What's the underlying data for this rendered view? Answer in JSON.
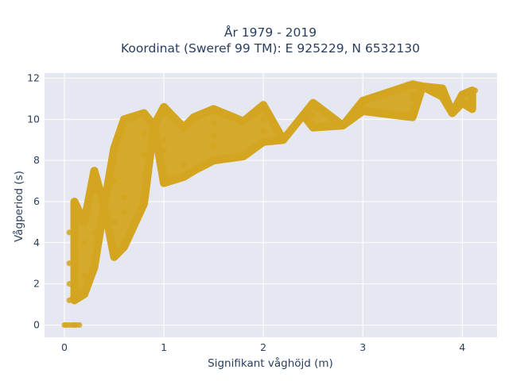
{
  "chart_data": {
    "type": "scatter",
    "title_line1": "År 1979 - 2019",
    "title_line2": "Koordinat (Sweref 99 TM): E 925229, N 6532130",
    "xlabel": "Signifikant våghöjd (m)",
    "ylabel": "Vågperiod (s)",
    "xlim": [
      -0.2,
      4.35
    ],
    "ylim": [
      -0.6,
      12.25
    ],
    "x_ticks": [
      0,
      1,
      2,
      3,
      4
    ],
    "y_ticks": [
      0,
      2,
      4,
      6,
      8,
      10,
      12
    ],
    "grid": true,
    "legend": "none",
    "colors": {
      "marker": "#d4a520",
      "plot_bg": "#e5e8f1",
      "grid": "#ffffff",
      "text": "#2a3f5f"
    },
    "series": [
      {
        "x": [
          0.0,
          0.02,
          0.05,
          0.08,
          0.1,
          0.12,
          0.15,
          0.05,
          0.08,
          0.1,
          0.12,
          0.15,
          0.05,
          0.1,
          0.2,
          0.3,
          0.5,
          0.6,
          0.05,
          0.1,
          0.2,
          0.3,
          0.5,
          0.6,
          0.8,
          0.05,
          0.2,
          0.4,
          0.6,
          0.8,
          1.0,
          1.2,
          1.3,
          0.1,
          0.3,
          0.5,
          0.8,
          1.0,
          1.2,
          1.5,
          1.8,
          0.3,
          0.5,
          0.8,
          1.0,
          1.5,
          2.0,
          2.2,
          0.5,
          1.0,
          1.5,
          2.0,
          2.5,
          2.8,
          0.8,
          1.2,
          1.5,
          2.0,
          2.5,
          3.0,
          3.5,
          1.0,
          1.5,
          2.0,
          2.5,
          3.0,
          3.5,
          3.8,
          4.0,
          0.6,
          0.8,
          1.0,
          1.5,
          2.0,
          2.5,
          3.0,
          3.5,
          0.9,
          1.3,
          1.8,
          2.4,
          3.0,
          3.5,
          3.9,
          4.1,
          3.53,
          3.58,
          3.78,
          4.13,
          3.95
        ],
        "y": [
          0.0,
          0.0,
          0.0,
          0.0,
          0.0,
          0.0,
          0.0,
          1.2,
          1.3,
          1.4,
          1.4,
          1.5,
          2.0,
          2.2,
          2.4,
          2.8,
          3.3,
          3.8,
          3.0,
          3.5,
          4.0,
          4.5,
          5.0,
          5.5,
          5.9,
          4.5,
          5.0,
          5.8,
          6.2,
          6.6,
          6.9,
          7.2,
          7.5,
          6.0,
          6.5,
          7.0,
          7.3,
          7.6,
          7.8,
          8.0,
          8.2,
          7.5,
          8.0,
          8.3,
          8.5,
          8.7,
          8.9,
          9.0,
          8.6,
          9.0,
          9.2,
          9.4,
          9.6,
          9.7,
          9.3,
          9.6,
          9.8,
          10.0,
          10.2,
          10.4,
          10.6,
          10.3,
          10.5,
          10.6,
          10.8,
          10.9,
          11.0,
          11.1,
          11.2,
          10.0,
          10.3,
          10.6,
          10.5,
          10.7,
          10.6,
          10.8,
          11.2,
          9.7,
          10.1,
          9.9,
          10.2,
          10.4,
          10.1,
          10.3,
          10.5,
          11.7,
          11.6,
          11.5,
          11.4,
          10.8
        ]
      }
    ]
  }
}
